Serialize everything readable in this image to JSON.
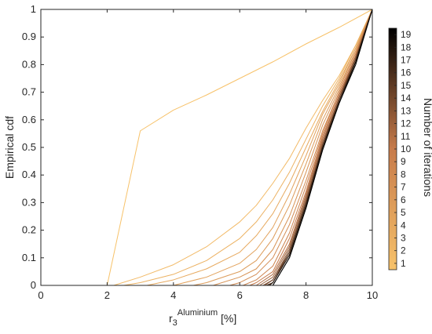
{
  "chart_data": {
    "type": "line",
    "ylabel": "Empirical cdf",
    "xlabel": {
      "base": "r",
      "subscript": "3",
      "superscript": "Aluminium",
      "unit": " [%]"
    },
    "xlim": [
      0,
      10
    ],
    "ylim": [
      0,
      1
    ],
    "x_ticks": [
      0,
      2,
      4,
      6,
      8,
      10
    ],
    "y_ticks": [
      0,
      0.1,
      0.2,
      0.3,
      0.4,
      0.5,
      0.6,
      0.7,
      0.8,
      0.9,
      1
    ],
    "grid": false,
    "colorbar": {
      "label": "Number of iterations",
      "ticks": [
        1,
        2,
        3,
        4,
        5,
        6,
        7,
        8,
        9,
        10,
        11,
        12,
        13,
        14,
        15,
        16,
        17,
        18,
        19
      ],
      "color_low": "#f7c26a",
      "color_mid": "#c77b4b",
      "color_high": "#000000"
    },
    "series": [
      {
        "iteration": 1,
        "x": [
          2.0,
          3.0,
          4.0,
          5.0,
          6.0,
          7.0,
          8.0,
          9.0,
          10.0
        ],
        "y": [
          0.0,
          0.56,
          0.635,
          0.69,
          0.75,
          0.81,
          0.875,
          0.935,
          1.0
        ]
      },
      {
        "iteration": 2,
        "x": [
          2.2,
          3.0,
          4.0,
          5.0,
          6.0,
          6.5,
          7.0,
          7.5,
          8.0,
          8.5,
          9.0,
          9.5,
          10.0
        ],
        "y": [
          0.0,
          0.03,
          0.075,
          0.14,
          0.23,
          0.29,
          0.37,
          0.46,
          0.57,
          0.67,
          0.76,
          0.87,
          1.0
        ]
      },
      {
        "iteration": 3,
        "x": [
          2.5,
          3.0,
          4.0,
          5.0,
          6.0,
          6.5,
          7.0,
          7.5,
          8.0,
          8.5,
          9.0,
          9.5,
          10.0
        ],
        "y": [
          0.0,
          0.01,
          0.04,
          0.09,
          0.17,
          0.23,
          0.31,
          0.41,
          0.53,
          0.65,
          0.75,
          0.87,
          1.0
        ]
      },
      {
        "iteration": 4,
        "x": [
          3.2,
          4.0,
          5.0,
          6.0,
          6.5,
          7.0,
          7.5,
          8.0,
          8.5,
          9.0,
          9.5,
          10.0
        ],
        "y": [
          0.0,
          0.02,
          0.06,
          0.12,
          0.18,
          0.26,
          0.37,
          0.5,
          0.63,
          0.74,
          0.86,
          1.0
        ]
      },
      {
        "iteration": 5,
        "x": [
          4.0,
          5.0,
          6.0,
          6.5,
          7.0,
          7.5,
          8.0,
          8.5,
          9.0,
          9.5,
          10.0
        ],
        "y": [
          0.0,
          0.03,
          0.08,
          0.13,
          0.21,
          0.33,
          0.47,
          0.62,
          0.73,
          0.86,
          1.0
        ]
      },
      {
        "iteration": 6,
        "x": [
          4.6,
          5.0,
          6.0,
          6.5,
          7.0,
          7.5,
          8.0,
          8.5,
          9.0,
          9.5,
          10.0
        ],
        "y": [
          0.0,
          0.01,
          0.05,
          0.09,
          0.17,
          0.29,
          0.44,
          0.6,
          0.72,
          0.85,
          1.0
        ]
      },
      {
        "iteration": 7,
        "x": [
          5.2,
          6.0,
          6.5,
          7.0,
          7.5,
          8.0,
          8.5,
          9.0,
          9.5,
          10.0
        ],
        "y": [
          0.0,
          0.03,
          0.06,
          0.13,
          0.25,
          0.41,
          0.58,
          0.71,
          0.85,
          1.0
        ]
      },
      {
        "iteration": 8,
        "x": [
          5.7,
          6.0,
          6.5,
          7.0,
          7.5,
          8.0,
          8.5,
          9.0,
          9.5,
          10.0
        ],
        "y": [
          0.0,
          0.01,
          0.04,
          0.1,
          0.22,
          0.38,
          0.56,
          0.7,
          0.84,
          1.0
        ]
      },
      {
        "iteration": 9,
        "x": [
          6.1,
          6.5,
          7.0,
          7.5,
          8.0,
          8.5,
          9.0,
          9.5,
          10.0
        ],
        "y": [
          0.0,
          0.02,
          0.07,
          0.19,
          0.36,
          0.55,
          0.7,
          0.84,
          1.0
        ]
      },
      {
        "iteration": 10,
        "x": [
          6.3,
          6.5,
          7.0,
          7.5,
          8.0,
          8.5,
          9.0,
          9.5,
          10.0
        ],
        "y": [
          0.0,
          0.01,
          0.05,
          0.17,
          0.34,
          0.54,
          0.69,
          0.83,
          1.0
        ]
      },
      {
        "iteration": 11,
        "x": [
          6.5,
          7.0,
          7.5,
          8.0,
          8.5,
          9.0,
          9.5,
          10.0
        ],
        "y": [
          0.0,
          0.04,
          0.15,
          0.33,
          0.53,
          0.69,
          0.83,
          1.0
        ]
      },
      {
        "iteration": 12,
        "x": [
          6.6,
          7.0,
          7.5,
          8.0,
          8.5,
          9.0,
          9.5,
          10.0
        ],
        "y": [
          0.0,
          0.03,
          0.14,
          0.32,
          0.52,
          0.68,
          0.83,
          1.0
        ]
      },
      {
        "iteration": 13,
        "x": [
          6.7,
          7.0,
          7.5,
          8.0,
          8.5,
          9.0,
          9.5,
          10.0
        ],
        "y": [
          0.0,
          0.02,
          0.13,
          0.31,
          0.51,
          0.68,
          0.82,
          1.0
        ]
      },
      {
        "iteration": 14,
        "x": [
          6.75,
          7.0,
          7.5,
          8.0,
          8.5,
          9.0,
          9.5,
          10.0
        ],
        "y": [
          0.0,
          0.02,
          0.12,
          0.3,
          0.51,
          0.67,
          0.82,
          1.0
        ]
      },
      {
        "iteration": 15,
        "x": [
          6.8,
          7.0,
          7.5,
          8.0,
          8.5,
          9.0,
          9.5,
          10.0
        ],
        "y": [
          0.0,
          0.01,
          0.12,
          0.3,
          0.5,
          0.67,
          0.82,
          1.0
        ]
      },
      {
        "iteration": 16,
        "x": [
          6.85,
          7.0,
          7.5,
          8.0,
          8.5,
          9.0,
          9.5,
          10.0
        ],
        "y": [
          0.0,
          0.01,
          0.11,
          0.29,
          0.5,
          0.67,
          0.81,
          1.0
        ]
      },
      {
        "iteration": 17,
        "x": [
          6.9,
          7.0,
          7.5,
          8.0,
          8.5,
          9.0,
          9.5,
          10.0
        ],
        "y": [
          0.0,
          0.01,
          0.11,
          0.29,
          0.5,
          0.66,
          0.81,
          1.0
        ]
      },
      {
        "iteration": 18,
        "x": [
          6.9,
          7.0,
          7.5,
          8.0,
          8.5,
          9.0,
          9.5,
          10.0
        ],
        "y": [
          0.0,
          0.0,
          0.1,
          0.28,
          0.49,
          0.66,
          0.81,
          1.0
        ]
      },
      {
        "iteration": 19,
        "x": [
          6.95,
          7.0,
          7.5,
          8.0,
          8.5,
          9.0,
          9.5,
          10.0
        ],
        "y": [
          0.0,
          0.0,
          0.1,
          0.28,
          0.49,
          0.66,
          0.8,
          1.0
        ]
      }
    ]
  }
}
